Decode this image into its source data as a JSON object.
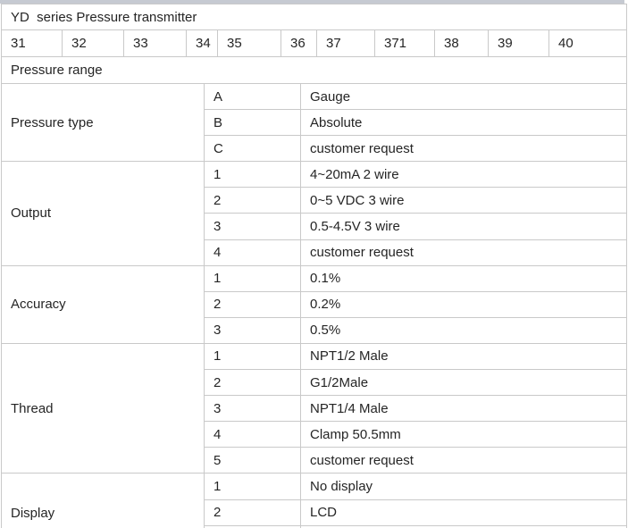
{
  "header": {
    "title": "YD  series Pressure transmitter"
  },
  "model_codes": [
    "31",
    "32",
    "33",
    "34",
    "35",
    "36",
    "37",
    "371",
    "38",
    "39",
    "40"
  ],
  "pressure_range_label": "Pressure range",
  "sections": [
    {
      "label": "Pressure type",
      "options": [
        {
          "code": "A",
          "value": "Gauge"
        },
        {
          "code": "B",
          "value": "Absolute"
        },
        {
          "code": "C",
          "value": "customer request"
        }
      ]
    },
    {
      "label": "Output",
      "options": [
        {
          "code": "1",
          "value": "4~20mA 2 wire"
        },
        {
          "code": "2",
          "value": "0~5 VDC 3 wire"
        },
        {
          "code": "3",
          "value": "0.5-4.5V 3 wire"
        },
        {
          "code": "4",
          "value": "customer request"
        }
      ]
    },
    {
      "label": "Accuracy",
      "options": [
        {
          "code": "1",
          "value": "0.1%"
        },
        {
          "code": "2",
          "value": "0.2%"
        },
        {
          "code": "3",
          "value": "0.5%"
        }
      ]
    },
    {
      "label": "Thread",
      "options": [
        {
          "code": "1",
          "value": "NPT1/2 Male"
        },
        {
          "code": "2",
          "value": "G1/2Male"
        },
        {
          "code": "3",
          "value": "NPT1/4 Male"
        },
        {
          "code": "4",
          "value": "Clamp 50.5mm"
        },
        {
          "code": "5",
          "value": "customer request"
        }
      ]
    },
    {
      "label": "Display",
      "options": [
        {
          "code": "1",
          "value": "No display"
        },
        {
          "code": "2",
          "value": "LCD"
        }
      ],
      "clipped_extra_row": true
    }
  ],
  "colors": {
    "border": "#c9c9c9",
    "text": "#252525",
    "top_strip": "#c6cad2",
    "background": "#ffffff"
  }
}
